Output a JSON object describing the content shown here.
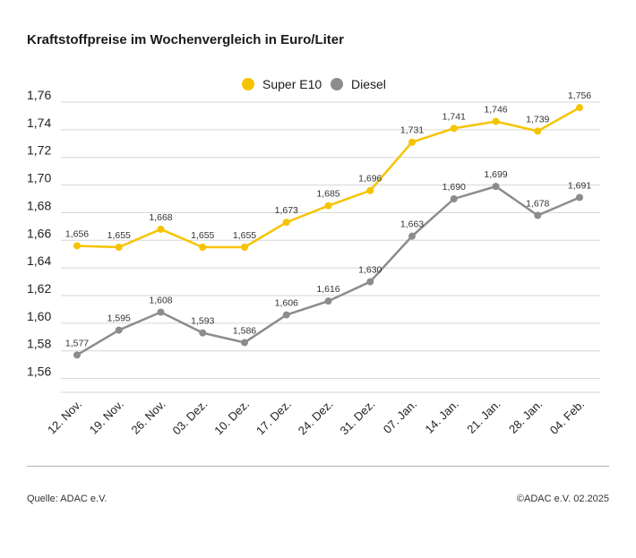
{
  "title": "Kraftstoffpreise im Wochenvergleich in Euro/Liter",
  "footer": {
    "source": "Quelle: ADAC e.V.",
    "copyright": "©ADAC e.V. 02.2025"
  },
  "colors": {
    "super": "#f5c400",
    "diesel": "#8c8c8c",
    "grid": "#d6d6d6",
    "text": "#222222"
  },
  "chart_data": {
    "type": "line",
    "title": "Kraftstoffpreise im Wochenvergleich in Euro/Liter",
    "categories": [
      "12. Nov.",
      "19. Nov.",
      "26. Nov.",
      "03. Dez.",
      "10. Dez.",
      "17. Dez.",
      "24. Dez.",
      "31. Dez.",
      "07. Jan.",
      "14. Jan.",
      "21. Jan.",
      "28. Jan.",
      "04. Feb."
    ],
    "series": [
      {
        "name": "Super E10",
        "color": "#f5c400",
        "values": [
          1.656,
          1.655,
          1.668,
          1.655,
          1.655,
          1.673,
          1.685,
          1.696,
          1.731,
          1.741,
          1.746,
          1.739,
          1.756
        ],
        "labels": [
          "1,656",
          "1,655",
          "1,668",
          "1,655",
          "1,655",
          "1,673",
          "1,685",
          "1,696",
          "1,731",
          "1,741",
          "1,746",
          "1,739",
          "1,756"
        ]
      },
      {
        "name": "Diesel",
        "color": "#8c8c8c",
        "values": [
          1.577,
          1.595,
          1.608,
          1.593,
          1.586,
          1.606,
          1.616,
          1.63,
          1.663,
          1.69,
          1.699,
          1.678,
          1.691
        ],
        "labels": [
          "1,577",
          "1,595",
          "1,608",
          "1,593",
          "1,586",
          "1,606",
          "1,616",
          "1,630",
          "1,663",
          "1,690",
          "1,699",
          "1,678",
          "1,691"
        ]
      }
    ],
    "yticks": [
      1.56,
      1.58,
      1.6,
      1.62,
      1.64,
      1.66,
      1.68,
      1.7,
      1.72,
      1.74,
      1.76
    ],
    "ytick_labels": [
      "1,56",
      "1,58",
      "1,60",
      "1,62",
      "1,64",
      "1,66",
      "1,68",
      "1,70",
      "1,72",
      "1,74",
      "1,76"
    ],
    "ylim": [
      1.55,
      1.76
    ],
    "grid": true,
    "legend": "top-center",
    "xlabel": "",
    "ylabel": ""
  }
}
